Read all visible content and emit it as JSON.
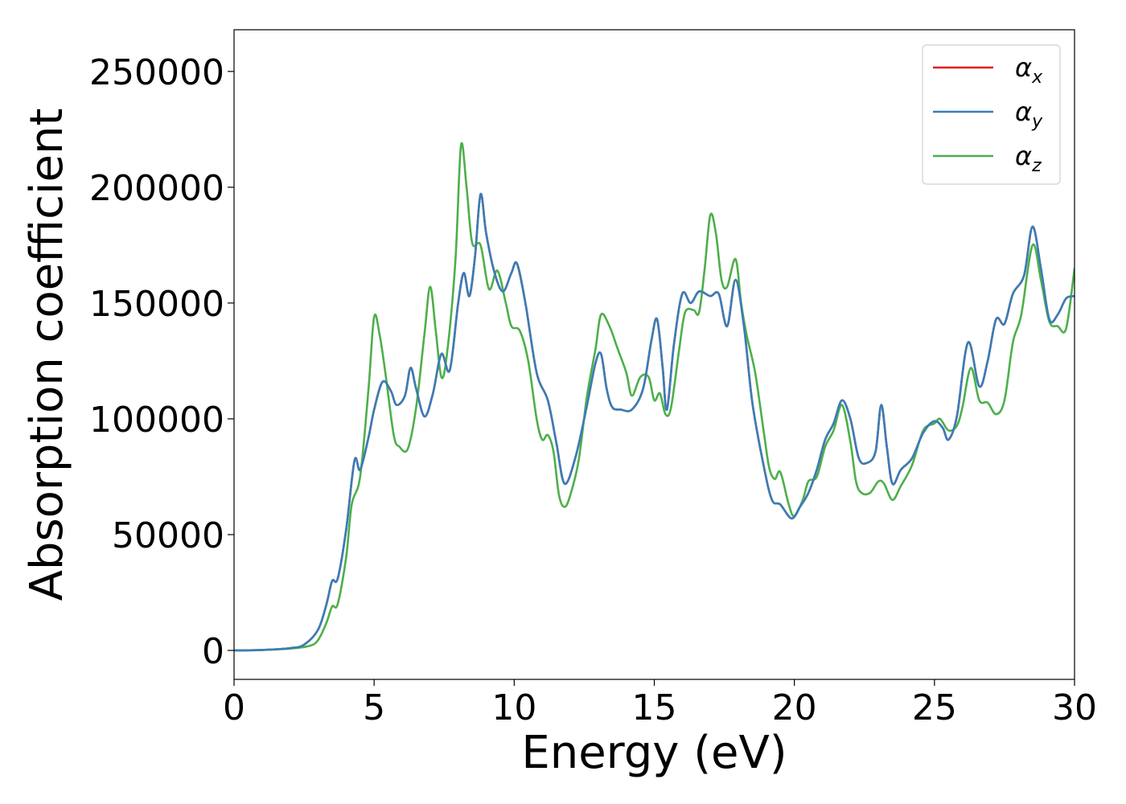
{
  "chart_data": {
    "type": "line",
    "xlabel": "Energy (eV)",
    "ylabel": "Absorption coefficient",
    "xlim": [
      0,
      30
    ],
    "ylim": [
      -12500,
      268000
    ],
    "x_ticks": [
      0,
      5,
      10,
      15,
      20,
      25,
      30
    ],
    "x_tick_labels": [
      "0",
      "5",
      "10",
      "15",
      "20",
      "25",
      "30"
    ],
    "y_ticks": [
      0,
      50000,
      100000,
      150000,
      200000,
      250000
    ],
    "y_tick_labels": [
      "0",
      "50000",
      "100000",
      "150000",
      "200000",
      "250000"
    ],
    "grid": false,
    "legend_position": "top-right",
    "series": [
      {
        "name": "α_x",
        "legend_symbol": "α",
        "legend_subscript": "x",
        "color": "#e41a1c",
        "points": [
          [
            0,
            0
          ],
          [
            1,
            200
          ],
          [
            2,
            1000
          ],
          [
            2.5,
            2500
          ],
          [
            3,
            9000
          ],
          [
            3.3,
            20000
          ],
          [
            3.5,
            30000
          ],
          [
            3.7,
            31000
          ],
          [
            4,
            52000
          ],
          [
            4.3,
            82000
          ],
          [
            4.5,
            78000
          ],
          [
            4.8,
            92000
          ],
          [
            5,
            104000
          ],
          [
            5.3,
            116000
          ],
          [
            5.6,
            112000
          ],
          [
            5.8,
            106000
          ],
          [
            6.1,
            110000
          ],
          [
            6.3,
            122000
          ],
          [
            6.5,
            113000
          ],
          [
            6.8,
            101000
          ],
          [
            7.1,
            111000
          ],
          [
            7.4,
            128000
          ],
          [
            7.7,
            121000
          ],
          [
            8,
            150000
          ],
          [
            8.2,
            163000
          ],
          [
            8.4,
            153000
          ],
          [
            8.6,
            170000
          ],
          [
            8.8,
            197000
          ],
          [
            9,
            180000
          ],
          [
            9.3,
            163000
          ],
          [
            9.6,
            155000
          ],
          [
            9.9,
            163000
          ],
          [
            10.1,
            167000
          ],
          [
            10.4,
            150000
          ],
          [
            10.8,
            120000
          ],
          [
            11.2,
            108000
          ],
          [
            11.5,
            90000
          ],
          [
            11.8,
            72000
          ],
          [
            12.2,
            84000
          ],
          [
            12.6,
            106000
          ],
          [
            12.9,
            124000
          ],
          [
            13.1,
            128000
          ],
          [
            13.3,
            113000
          ],
          [
            13.5,
            105000
          ],
          [
            13.8,
            104000
          ],
          [
            14.2,
            104000
          ],
          [
            14.6,
            113000
          ],
          [
            14.9,
            134000
          ],
          [
            15.1,
            143000
          ],
          [
            15.3,
            122000
          ],
          [
            15.45,
            104000
          ],
          [
            15.7,
            132000
          ],
          [
            16,
            154000
          ],
          [
            16.3,
            150000
          ],
          [
            16.6,
            155000
          ],
          [
            17,
            153000
          ],
          [
            17.3,
            154000
          ],
          [
            17.6,
            140000
          ],
          [
            17.9,
            160000
          ],
          [
            18.2,
            140000
          ],
          [
            18.5,
            107000
          ],
          [
            18.9,
            80000
          ],
          [
            19.2,
            65000
          ],
          [
            19.5,
            63000
          ],
          [
            19.9,
            57000
          ],
          [
            20.2,
            62000
          ],
          [
            20.5,
            68000
          ],
          [
            20.8,
            78000
          ],
          [
            21.1,
            91000
          ],
          [
            21.4,
            98000
          ],
          [
            21.7,
            108000
          ],
          [
            22,
            100000
          ],
          [
            22.3,
            83000
          ],
          [
            22.6,
            81000
          ],
          [
            22.9,
            86000
          ],
          [
            23.1,
            106000
          ],
          [
            23.3,
            88000
          ],
          [
            23.5,
            72000
          ],
          [
            23.8,
            78000
          ],
          [
            24.2,
            83000
          ],
          [
            24.6,
            94000
          ],
          [
            25,
            99000
          ],
          [
            25.3,
            96000
          ],
          [
            25.5,
            91000
          ],
          [
            25.8,
            101000
          ],
          [
            26.2,
            133000
          ],
          [
            26.6,
            114000
          ],
          [
            26.9,
            125000
          ],
          [
            27.2,
            143000
          ],
          [
            27.5,
            141000
          ],
          [
            27.8,
            154000
          ],
          [
            28.2,
            162000
          ],
          [
            28.5,
            183000
          ],
          [
            28.8,
            165000
          ],
          [
            29.1,
            143000
          ],
          [
            29.4,
            145000
          ],
          [
            29.7,
            152000
          ],
          [
            30,
            153000
          ]
        ]
      },
      {
        "name": "α_y",
        "legend_symbol": "α",
        "legend_subscript": "y",
        "color": "#377eb8",
        "points": [
          [
            0,
            0
          ],
          [
            1,
            200
          ],
          [
            2,
            1000
          ],
          [
            2.5,
            2500
          ],
          [
            3,
            9000
          ],
          [
            3.3,
            20000
          ],
          [
            3.5,
            30000
          ],
          [
            3.7,
            31000
          ],
          [
            4,
            52000
          ],
          [
            4.3,
            82000
          ],
          [
            4.5,
            78000
          ],
          [
            4.8,
            92000
          ],
          [
            5,
            104000
          ],
          [
            5.3,
            116000
          ],
          [
            5.6,
            112000
          ],
          [
            5.8,
            106000
          ],
          [
            6.1,
            110000
          ],
          [
            6.3,
            122000
          ],
          [
            6.5,
            113000
          ],
          [
            6.8,
            101000
          ],
          [
            7.1,
            111000
          ],
          [
            7.4,
            128000
          ],
          [
            7.7,
            121000
          ],
          [
            8,
            150000
          ],
          [
            8.2,
            163000
          ],
          [
            8.4,
            153000
          ],
          [
            8.6,
            170000
          ],
          [
            8.8,
            197000
          ],
          [
            9,
            180000
          ],
          [
            9.3,
            163000
          ],
          [
            9.6,
            155000
          ],
          [
            9.9,
            163000
          ],
          [
            10.1,
            167000
          ],
          [
            10.4,
            150000
          ],
          [
            10.8,
            120000
          ],
          [
            11.2,
            108000
          ],
          [
            11.5,
            90000
          ],
          [
            11.8,
            72000
          ],
          [
            12.2,
            84000
          ],
          [
            12.6,
            106000
          ],
          [
            12.9,
            124000
          ],
          [
            13.1,
            128000
          ],
          [
            13.3,
            113000
          ],
          [
            13.5,
            105000
          ],
          [
            13.8,
            104000
          ],
          [
            14.2,
            104000
          ],
          [
            14.6,
            113000
          ],
          [
            14.9,
            134000
          ],
          [
            15.1,
            143000
          ],
          [
            15.3,
            122000
          ],
          [
            15.45,
            104000
          ],
          [
            15.7,
            132000
          ],
          [
            16,
            154000
          ],
          [
            16.3,
            150000
          ],
          [
            16.6,
            155000
          ],
          [
            17,
            153000
          ],
          [
            17.3,
            154000
          ],
          [
            17.6,
            140000
          ],
          [
            17.9,
            160000
          ],
          [
            18.2,
            140000
          ],
          [
            18.5,
            107000
          ],
          [
            18.9,
            80000
          ],
          [
            19.2,
            65000
          ],
          [
            19.5,
            63000
          ],
          [
            19.9,
            57000
          ],
          [
            20.2,
            62000
          ],
          [
            20.5,
            68000
          ],
          [
            20.8,
            78000
          ],
          [
            21.1,
            91000
          ],
          [
            21.4,
            98000
          ],
          [
            21.7,
            108000
          ],
          [
            22,
            100000
          ],
          [
            22.3,
            83000
          ],
          [
            22.6,
            81000
          ],
          [
            22.9,
            86000
          ],
          [
            23.1,
            106000
          ],
          [
            23.3,
            88000
          ],
          [
            23.5,
            72000
          ],
          [
            23.8,
            78000
          ],
          [
            24.2,
            83000
          ],
          [
            24.6,
            94000
          ],
          [
            25,
            99000
          ],
          [
            25.3,
            96000
          ],
          [
            25.5,
            91000
          ],
          [
            25.8,
            101000
          ],
          [
            26.2,
            133000
          ],
          [
            26.6,
            114000
          ],
          [
            26.9,
            125000
          ],
          [
            27.2,
            143000
          ],
          [
            27.5,
            141000
          ],
          [
            27.8,
            154000
          ],
          [
            28.2,
            162000
          ],
          [
            28.5,
            183000
          ],
          [
            28.8,
            165000
          ],
          [
            29.1,
            143000
          ],
          [
            29.4,
            145000
          ],
          [
            29.7,
            152000
          ],
          [
            30,
            153000
          ]
        ]
      },
      {
        "name": "α_z",
        "legend_symbol": "α",
        "legend_subscript": "z",
        "color": "#4daf4a",
        "points": [
          [
            0,
            0
          ],
          [
            1,
            200
          ],
          [
            2,
            800
          ],
          [
            2.7,
            2000
          ],
          [
            3,
            4500
          ],
          [
            3.3,
            12000
          ],
          [
            3.5,
            19000
          ],
          [
            3.7,
            20000
          ],
          [
            4,
            40000
          ],
          [
            4.2,
            63000
          ],
          [
            4.5,
            75000
          ],
          [
            4.8,
            113000
          ],
          [
            5,
            144000
          ],
          [
            5.2,
            136000
          ],
          [
            5.4,
            120000
          ],
          [
            5.7,
            93000
          ],
          [
            5.9,
            88000
          ],
          [
            6.2,
            87000
          ],
          [
            6.5,
            105000
          ],
          [
            6.8,
            137000
          ],
          [
            7,
            157000
          ],
          [
            7.2,
            138000
          ],
          [
            7.4,
            118000
          ],
          [
            7.6,
            128000
          ],
          [
            7.9,
            168000
          ],
          [
            8.1,
            218000
          ],
          [
            8.3,
            200000
          ],
          [
            8.5,
            176000
          ],
          [
            8.8,
            175000
          ],
          [
            9.1,
            156000
          ],
          [
            9.4,
            164000
          ],
          [
            9.7,
            150000
          ],
          [
            9.9,
            140000
          ],
          [
            10.2,
            138000
          ],
          [
            10.5,
            125000
          ],
          [
            10.8,
            100000
          ],
          [
            11,
            91000
          ],
          [
            11.2,
            93000
          ],
          [
            11.4,
            86000
          ],
          [
            11.6,
            67000
          ],
          [
            11.8,
            62000
          ],
          [
            12,
            67000
          ],
          [
            12.3,
            82000
          ],
          [
            12.6,
            110000
          ],
          [
            12.9,
            130000
          ],
          [
            13.1,
            145000
          ],
          [
            13.4,
            140000
          ],
          [
            13.7,
            130000
          ],
          [
            14,
            120000
          ],
          [
            14.2,
            110000
          ],
          [
            14.5,
            118000
          ],
          [
            14.8,
            118000
          ],
          [
            15,
            108000
          ],
          [
            15.2,
            111000
          ],
          [
            15.4,
            102000
          ],
          [
            15.6,
            105000
          ],
          [
            15.9,
            131000
          ],
          [
            16.1,
            146000
          ],
          [
            16.4,
            147000
          ],
          [
            16.6,
            146000
          ],
          [
            16.8,
            165000
          ],
          [
            17,
            188000
          ],
          [
            17.2,
            180000
          ],
          [
            17.4,
            160000
          ],
          [
            17.6,
            157000
          ],
          [
            17.9,
            169000
          ],
          [
            18.1,
            150000
          ],
          [
            18.3,
            136000
          ],
          [
            18.6,
            120000
          ],
          [
            18.9,
            95000
          ],
          [
            19.1,
            79000
          ],
          [
            19.3,
            74000
          ],
          [
            19.5,
            77000
          ],
          [
            19.8,
            63000
          ],
          [
            20,
            58000
          ],
          [
            20.3,
            65000
          ],
          [
            20.5,
            73000
          ],
          [
            20.8,
            75000
          ],
          [
            21.1,
            88000
          ],
          [
            21.4,
            95000
          ],
          [
            21.7,
            106000
          ],
          [
            22,
            90000
          ],
          [
            22.2,
            73000
          ],
          [
            22.4,
            68000
          ],
          [
            22.7,
            68000
          ],
          [
            23,
            73000
          ],
          [
            23.2,
            72000
          ],
          [
            23.5,
            65000
          ],
          [
            23.8,
            71000
          ],
          [
            24.2,
            80000
          ],
          [
            24.6,
            95000
          ],
          [
            25,
            98000
          ],
          [
            25.2,
            100000
          ],
          [
            25.5,
            95000
          ],
          [
            25.8,
            97000
          ],
          [
            26,
            105000
          ],
          [
            26.3,
            122000
          ],
          [
            26.6,
            108000
          ],
          [
            26.9,
            107000
          ],
          [
            27.2,
            102000
          ],
          [
            27.5,
            108000
          ],
          [
            27.8,
            133000
          ],
          [
            28.1,
            145000
          ],
          [
            28.5,
            175000
          ],
          [
            28.8,
            160000
          ],
          [
            29.1,
            142000
          ],
          [
            29.4,
            140000
          ],
          [
            29.7,
            139000
          ],
          [
            30,
            165000
          ]
        ]
      }
    ]
  }
}
